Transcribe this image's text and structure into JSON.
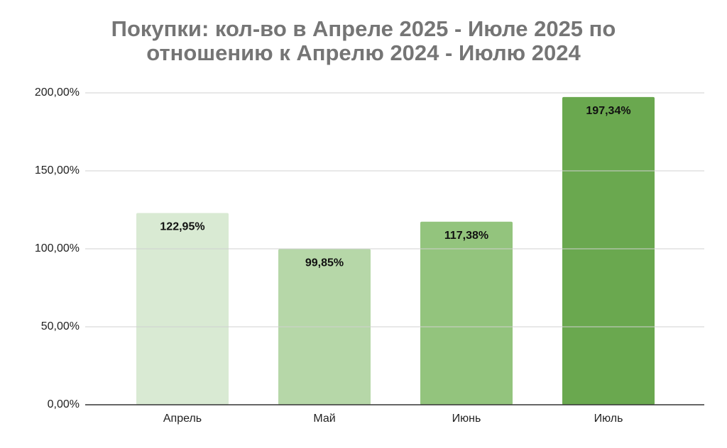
{
  "chart_data": {
    "type": "bar",
    "title": "Покупки: кол-во в Апреле 2025 - Июле 2025 по отношению к Апрелю 2024 - Июлю 2024",
    "categories": [
      "Апрель",
      "Май",
      "Июнь",
      "Июль"
    ],
    "values": [
      122.95,
      99.85,
      117.38,
      197.34
    ],
    "value_labels": [
      "122,95%",
      "99,85%",
      "117,38%",
      "197,34%"
    ],
    "colors": [
      "#d9ead3",
      "#b6d7a8",
      "#93c47d",
      "#6aa84f"
    ],
    "ylim": [
      0,
      200
    ],
    "yticks": [
      {
        "value": 0,
        "label": "0,00%"
      },
      {
        "value": 50,
        "label": "50,00%"
      },
      {
        "value": 100,
        "label": "100,00%"
      },
      {
        "value": 150,
        "label": "150,00%"
      },
      {
        "value": 200,
        "label": "200,00%"
      }
    ],
    "grid": true
  }
}
